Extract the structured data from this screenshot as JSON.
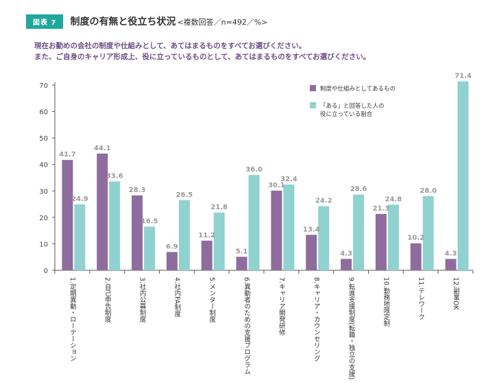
{
  "figure_badge": "図表 7",
  "title": "制度の有無と役立ち状況",
  "title_suffix": "<複数回答／n=492／%>",
  "subtitle_line1": "現在お勤めの会社の制度や仕組みとして、あてはまるものをすべてお選びください。",
  "subtitle_line2": "また、ご自身のキャリア形成上、役に立っているものとして、あてはまるものをすべてお選びください。",
  "colors": {
    "series1": "#8e6d9e",
    "series2": "#8fd2d0",
    "badge": "#1fa89b",
    "subtitle": "#6e4f88"
  },
  "chart_data": {
    "type": "bar",
    "categories": [
      "1.定期異動・ローテーション",
      "2.自己申告制度",
      "3.社内公募制度",
      "4.社内FA制度",
      "5.メンター制度",
      "6.異動者のための支援プログラム",
      "7.キャリア開発研修",
      "8.キャリア・カウンセリング",
      "9.転進支援制度(転職・独立の支援)",
      "10.勤務地限定制",
      "11.テレワーク",
      "12.副業OK"
    ],
    "series": [
      {
        "name": "制度や仕組みとしてあるもの",
        "values": [
          41.7,
          44.1,
          28.3,
          6.9,
          11.2,
          5.1,
          30.1,
          13.4,
          4.3,
          21.3,
          10.2,
          4.3
        ]
      },
      {
        "name": "「ある」と回答した人の役に立っている割合",
        "values": [
          24.9,
          33.6,
          16.5,
          26.5,
          21.8,
          36.0,
          32.4,
          24.2,
          28.6,
          24.8,
          28.0,
          71.4
        ]
      }
    ],
    "ylim": [
      0,
      70
    ],
    "yticks": [
      0,
      10,
      20,
      30,
      40,
      50,
      60,
      70
    ],
    "legend_position": "top-right",
    "legend": [
      {
        "lines": [
          "制度や仕組みとしてあるもの"
        ]
      },
      {
        "lines": [
          "「ある」と回答した人の",
          "役に立っている割合"
        ]
      }
    ]
  }
}
